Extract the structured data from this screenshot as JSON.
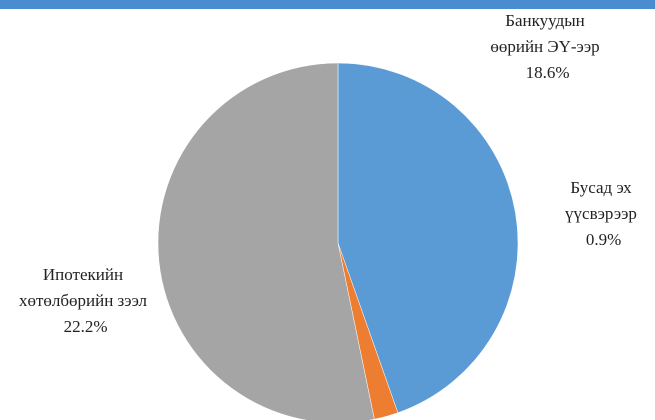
{
  "chart_data": {
    "type": "pie",
    "categories": [
      "Банкуудын өөрийн ЭҮ-ээр",
      "Бусад эх үүсвэрээр",
      "Ипотекийн хөтөлбөрийн зээл"
    ],
    "values": [
      18.6,
      0.9,
      22.2
    ],
    "value_labels": [
      "18.6%",
      "0.9%",
      "22.2%"
    ],
    "colors": [
      "#5b9bd5",
      "#ed7d31",
      "#a5a5a5"
    ]
  }
}
